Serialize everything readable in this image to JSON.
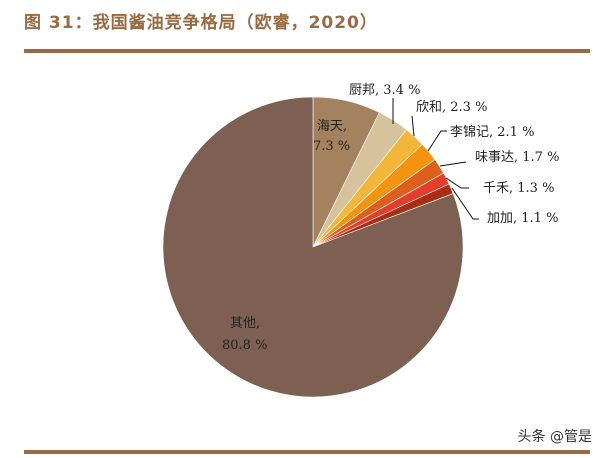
{
  "title": "图 31：我国酱油竞争格局（欧睿，2020）",
  "watermark": "头条 @管是",
  "colors": {
    "accent": "#9a6a43"
  },
  "chart_data": {
    "type": "pie",
    "title": "图 31：我国酱油竞争格局（欧睿，2020）",
    "start_angle": "12 o'clock, clockwise",
    "slices": [
      {
        "label": "海天",
        "value": 7.3,
        "display": "海天,",
        "display2": "7.3 %",
        "color": "#a5825f"
      },
      {
        "label": "厨邦",
        "value": 3.4,
        "display": "厨邦, 3.4 %",
        "color": "#d6c29c"
      },
      {
        "label": "欣和",
        "value": 2.3,
        "display": "欣和, 2.3 %",
        "color": "#f2b73a"
      },
      {
        "label": "李锦记",
        "value": 2.1,
        "display": "李锦记, 2.1 %",
        "color": "#f29410"
      },
      {
        "label": "味事达",
        "value": 1.7,
        "display": "味事达, 1.7 %",
        "color": "#dc5f1c"
      },
      {
        "label": "千禾",
        "value": 1.3,
        "display": "千禾, 1.3 %",
        "color": "#e33d2c"
      },
      {
        "label": "加加",
        "value": 1.1,
        "display": "加加, 1.1 %",
        "color": "#a92f14"
      },
      {
        "label": "其他",
        "value": 80.8,
        "display": "其他,",
        "display2": "80.8 %",
        "color": "#7d6052"
      }
    ],
    "legend": "none (data labels with leader lines)"
  }
}
